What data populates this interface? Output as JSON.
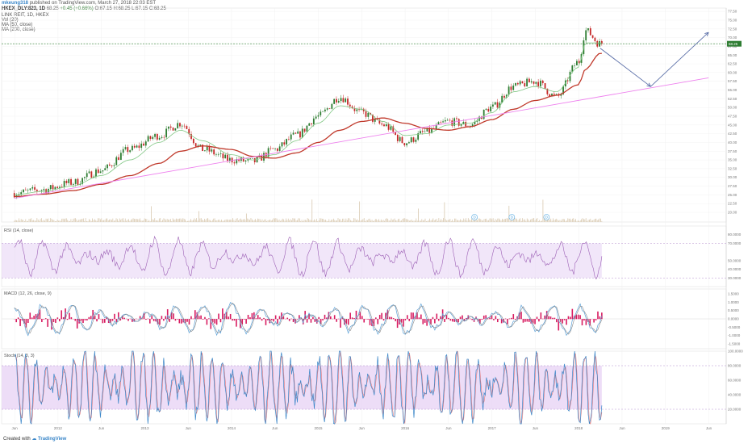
{
  "header": {
    "author": "mkeung318",
    "published": "published on TradingView.com, March 27, 2018 22:03 EST",
    "symbol": "HKEX_DLY:823, 1D",
    "last": "68.25",
    "change": "+0.45 (+0.66%)",
    "ohlc": "O:67.15 H:68.25 L:67.15 C:68.25",
    "name": "LINK REIT, 1D, HKEX",
    "indicators": [
      "Vol (20)",
      "MA (50, close)",
      "MA (200, close)"
    ]
  },
  "panes": {
    "rsi_title": "RSI (14, close)",
    "macd_title": "MACD (12, 26, close, 9)",
    "stoch_title": "Stoch (14, 3, 3)"
  },
  "footer": {
    "created": "Created with",
    "brand": "TradingView"
  },
  "colors": {
    "candle_up": "#2e7d32",
    "candle_down": "#c62828",
    "ma50": "#81c784",
    "ma200": "#c0392b",
    "trend": "#ee82ee",
    "projection": "#5b6fa8",
    "rsi": "#9c5fb5",
    "band": "#e8d5f5",
    "macd": "#5aa0d8",
    "signal": "#888888",
    "hist": "#d81b60",
    "stoch_k": "#3a86c8",
    "stoch_d": "#e57373"
  },
  "chart_data": [
    {
      "type": "candlestick",
      "pane": "price",
      "x": [
        "2011-06",
        "2011-10",
        "2012-02",
        "2012-06",
        "2012-10",
        "2013-02",
        "2013-05",
        "2013-08",
        "2013-12",
        "2014-03",
        "2014-06",
        "2014-09",
        "2014-12",
        "2015-03",
        "2015-06",
        "2015-09",
        "2015-12",
        "2016-03",
        "2016-06",
        "2016-09",
        "2016-12",
        "2017-03",
        "2017-06",
        "2017-09",
        "2017-12",
        "2018-01",
        "2018-03"
      ],
      "close": [
        25.5,
        26.5,
        28.5,
        32.0,
        38.0,
        42.0,
        45.5,
        38.0,
        35.0,
        34.5,
        38.0,
        42.0,
        47.5,
        53.0,
        48.5,
        45.0,
        40.0,
        43.0,
        46.0,
        45.0,
        50.0,
        56.0,
        57.5,
        53.0,
        63.0,
        72.0,
        68.25
      ],
      "ma50": [
        25.0,
        26.0,
        27.5,
        30.5,
        35.0,
        40.0,
        43.5,
        40.5,
        36.5,
        35.0,
        36.5,
        40.5,
        45.5,
        50.5,
        49.5,
        46.0,
        42.0,
        42.5,
        45.0,
        45.5,
        48.5,
        54.5,
        56.0,
        54.5,
        61.5,
        68.5,
        68.5
      ],
      "ma200": [
        24.5,
        25.2,
        26.2,
        28.0,
        30.5,
        34.0,
        37.5,
        39.0,
        38.0,
        36.0,
        35.5,
        37.0,
        40.0,
        43.5,
        46.0,
        47.0,
        45.5,
        44.0,
        43.5,
        44.5,
        46.5,
        49.5,
        52.0,
        53.5,
        56.5,
        61.0,
        65.5
      ],
      "price_axis_labels": [
        "77.50",
        "75.00",
        "72.50",
        "70.00",
        "67.50",
        "65.00",
        "62.50",
        "60.00",
        "57.50",
        "55.00",
        "52.50",
        "50.00",
        "47.50",
        "45.00",
        "42.50",
        "40.00",
        "37.50",
        "35.00",
        "32.50",
        "30.00",
        "27.50",
        "25.00",
        "22.50",
        "20.00"
      ],
      "price_tag": "68.25",
      "ylim": [
        20,
        78
      ],
      "time_axis_labels": [
        "Jun",
        "2012",
        "Jun",
        "2013",
        "Jun",
        "2014",
        "Jun",
        "2015",
        "Jun",
        "2016",
        "Jun",
        "2017",
        "Jun",
        "2018",
        "Jun",
        "2019",
        "Jun"
      ],
      "dividend_labels": [
        "D",
        "D",
        "D"
      ],
      "projection": {
        "x": [
          "2018-03",
          "2018-10",
          "2019-06"
        ],
        "y": [
          67.0,
          56.0,
          71.5
        ]
      },
      "trendline": {
        "x": [
          "2011-06",
          "2019-06"
        ],
        "y": [
          24.0,
          58.5
        ]
      }
    },
    {
      "type": "line",
      "pane": "rsi",
      "axis_labels": [
        "80.0000",
        "70.0000",
        "50.0000",
        "40.0000",
        "30.0000"
      ],
      "ylim": [
        20,
        90
      ],
      "band": [
        30,
        70
      ]
    },
    {
      "type": "line",
      "pane": "macd",
      "axis_labels": [
        "1.5000",
        "1.0000",
        "0.5000",
        "0.0000",
        "-0.5000",
        "-1.0000",
        "-1.5000"
      ],
      "ylim": [
        -1.8,
        1.8
      ]
    },
    {
      "type": "line",
      "pane": "stoch",
      "axis_labels": [
        "100.0000",
        "80.0000",
        "60.0000",
        "40.0000",
        "20.0000"
      ],
      "ylim": [
        0,
        100
      ],
      "band": [
        20,
        80
      ]
    }
  ]
}
